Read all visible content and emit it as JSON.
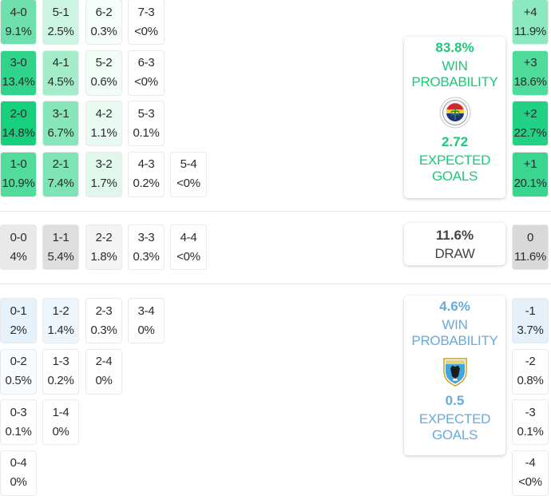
{
  "colors": {
    "home_accent": "#1dc87a",
    "away_accent": "#6aaad8",
    "draw_text": "#444444"
  },
  "home_scores": [
    {
      "score": "4-0",
      "pct": "9.1%",
      "col": 0,
      "row": 0,
      "bg": "#6ee0ad"
    },
    {
      "score": "5-1",
      "pct": "2.5%",
      "col": 1,
      "row": 0,
      "bg": "#cdf5e3"
    },
    {
      "score": "6-2",
      "pct": "0.3%",
      "col": 2,
      "row": 0,
      "bg": "#f7fdfa"
    },
    {
      "score": "7-3",
      "pct": "<0%",
      "col": 3,
      "row": 0,
      "bg": "#ffffff"
    },
    {
      "score": "3-0",
      "pct": "13.4%",
      "col": 0,
      "row": 1,
      "bg": "#2fd48a"
    },
    {
      "score": "4-1",
      "pct": "4.5%",
      "col": 1,
      "row": 1,
      "bg": "#a4ecca"
    },
    {
      "score": "5-2",
      "pct": "0.6%",
      "col": 2,
      "row": 1,
      "bg": "#f1fcf6"
    },
    {
      "score": "6-3",
      "pct": "<0%",
      "col": 3,
      "row": 1,
      "bg": "#ffffff"
    },
    {
      "score": "2-0",
      "pct": "14.8%",
      "col": 0,
      "row": 2,
      "bg": "#18cf7e"
    },
    {
      "score": "3-1",
      "pct": "6.7%",
      "col": 1,
      "row": 2,
      "bg": "#88e6bb"
    },
    {
      "score": "4-2",
      "pct": "1.1%",
      "col": 2,
      "row": 2,
      "bg": "#e8faf1"
    },
    {
      "score": "5-3",
      "pct": "0.1%",
      "col": 3,
      "row": 2,
      "bg": "#ffffff"
    },
    {
      "score": "1-0",
      "pct": "10.9%",
      "col": 0,
      "row": 3,
      "bg": "#52dc9c"
    },
    {
      "score": "2-1",
      "pct": "7.4%",
      "col": 1,
      "row": 3,
      "bg": "#7ee3b5"
    },
    {
      "score": "3-2",
      "pct": "1.7%",
      "col": 2,
      "row": 3,
      "bg": "#e0f8ec"
    },
    {
      "score": "4-3",
      "pct": "0.2%",
      "col": 3,
      "row": 3,
      "bg": "#ffffff"
    },
    {
      "score": "5-4",
      "pct": "<0%",
      "col": 4,
      "row": 3,
      "bg": "#ffffff"
    }
  ],
  "draw_scores": [
    {
      "score": "0-0",
      "pct": "4%",
      "col": 0,
      "bg": "#e9e9e9"
    },
    {
      "score": "1-1",
      "pct": "5.4%",
      "col": 1,
      "bg": "#dedede"
    },
    {
      "score": "2-2",
      "pct": "1.8%",
      "col": 2,
      "bg": "#f4f4f4"
    },
    {
      "score": "3-3",
      "pct": "0.3%",
      "col": 3,
      "bg": "#ffffff"
    },
    {
      "score": "4-4",
      "pct": "<0%",
      "col": 4,
      "bg": "#ffffff"
    }
  ],
  "away_scores": [
    {
      "score": "0-1",
      "pct": "2%",
      "col": 0,
      "row": 0,
      "bg": "#e6f2fb"
    },
    {
      "score": "1-2",
      "pct": "1.4%",
      "col": 1,
      "row": 0,
      "bg": "#edf6fc"
    },
    {
      "score": "2-3",
      "pct": "0.3%",
      "col": 2,
      "row": 0,
      "bg": "#ffffff"
    },
    {
      "score": "3-4",
      "pct": "0%",
      "col": 3,
      "row": 0,
      "bg": "#ffffff"
    },
    {
      "score": "0-2",
      "pct": "0.5%",
      "col": 0,
      "row": 1,
      "bg": "#f9fcfe"
    },
    {
      "score": "1-3",
      "pct": "0.2%",
      "col": 1,
      "row": 1,
      "bg": "#ffffff"
    },
    {
      "score": "2-4",
      "pct": "0%",
      "col": 2,
      "row": 1,
      "bg": "#ffffff"
    },
    {
      "score": "0-3",
      "pct": "0.1%",
      "col": 0,
      "row": 2,
      "bg": "#ffffff"
    },
    {
      "score": "1-4",
      "pct": "0%",
      "col": 1,
      "row": 2,
      "bg": "#ffffff"
    },
    {
      "score": "0-4",
      "pct": "0%",
      "col": 0,
      "row": 3,
      "bg": "#ffffff"
    }
  ],
  "margins": {
    "home": [
      {
        "label": "+4",
        "pct": "11.9%",
        "bg": "#8ce8be"
      },
      {
        "label": "+3",
        "pct": "18.6%",
        "bg": "#4fdb9a"
      },
      {
        "label": "+2",
        "pct": "22.7%",
        "bg": "#22d184"
      },
      {
        "label": "+1",
        "pct": "20.1%",
        "bg": "#3ad690"
      }
    ],
    "draw": {
      "label": "0",
      "pct": "11.6%",
      "bg": "#d9d9d9"
    },
    "away": [
      {
        "label": "-1",
        "pct": "3.7%",
        "bg": "#e4f1fb"
      },
      {
        "label": "-2",
        "pct": "0.8%",
        "bg": "#ffffff"
      },
      {
        "label": "-3",
        "pct": "0.1%",
        "bg": "#ffffff"
      },
      {
        "label": "-4",
        "pct": "<0%",
        "bg": "#ffffff"
      }
    ]
  },
  "home_card": {
    "win_pct": "83.8%",
    "win_label_1": "WIN",
    "win_label_2": "PROBABILITY",
    "xg": "2.72",
    "xg_label_1": "EXPECTED",
    "xg_label_2": "GOALS",
    "logo_icon": "fenerbahce-crest-icon"
  },
  "draw_card": {
    "pct": "11.6%",
    "label": "DRAW"
  },
  "away_card": {
    "win_pct": "4.6%",
    "win_label_1": "WIN",
    "win_label_2": "PROBABILITY",
    "xg": "0.5",
    "xg_label_1": "EXPECTED",
    "xg_label_2": "GOALS",
    "logo_icon": "away-team-shield-crest-icon"
  }
}
